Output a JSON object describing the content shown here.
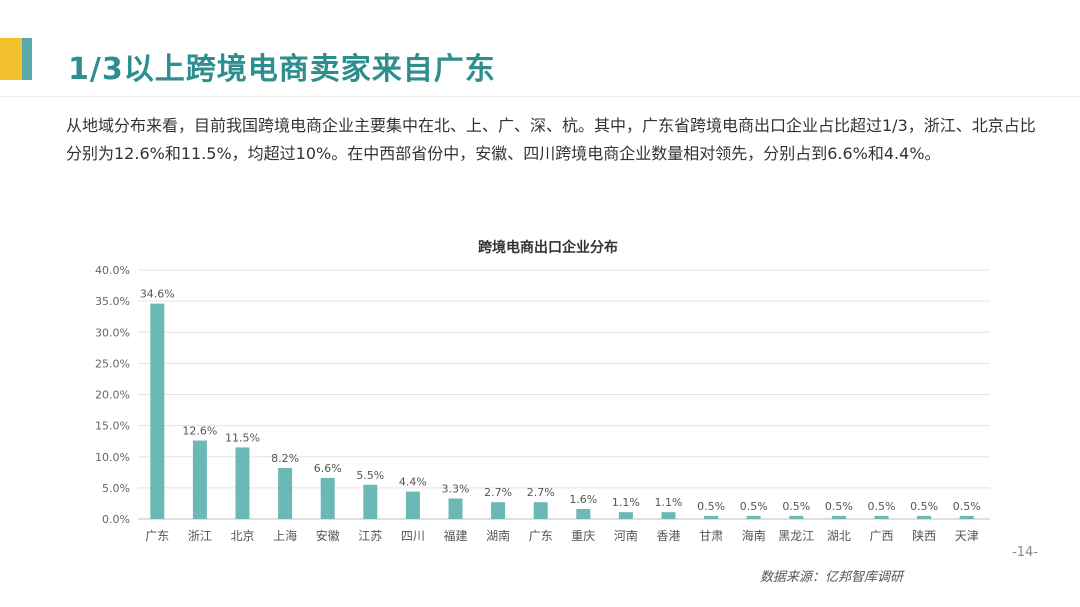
{
  "colors": {
    "bar": "#6cb8b5",
    "title": "#2c8e8e",
    "accent_yellow": "#f2c12e",
    "accent_teal": "#5aa8a8"
  },
  "page_title": "1/3以上跨境电商卖家来自广东",
  "paragraph": "从地域分布来看，目前我国跨境电商企业主要集中在北、上、广、深、杭。其中，广东省跨境电商出口企业占比超过1/3，浙江、北京占比分别为12.6%和11.5%，均超过10%。在中西部省份中，安徽、四川跨境电商企业数量相对领先，分别占到6.6%和4.4%。",
  "page_number": "-14-",
  "source": "数据来源：亿邦智库调研",
  "chart_data": {
    "type": "bar",
    "title": "跨境电商出口企业分布",
    "xlabel": "",
    "ylabel": "",
    "ylim": [
      0,
      40
    ],
    "yticks": [
      "0.0%",
      "5.0%",
      "10.0%",
      "15.0%",
      "20.0%",
      "25.0%",
      "30.0%",
      "35.0%",
      "40.0%"
    ],
    "grid": true,
    "categories": [
      "广东",
      "浙江",
      "北京",
      "上海",
      "安徽",
      "江苏",
      "四川",
      "福建",
      "湖南",
      "广东",
      "重庆",
      "河南",
      "香港",
      "甘肃",
      "海南",
      "黑龙江",
      "湖北",
      "广西",
      "陕西",
      "天津"
    ],
    "values": [
      34.6,
      12.6,
      11.5,
      8.2,
      6.6,
      5.5,
      4.4,
      3.3,
      2.7,
      2.7,
      1.6,
      1.1,
      1.1,
      0.5,
      0.5,
      0.5,
      0.5,
      0.5,
      0.5,
      0.5
    ],
    "labels": [
      "34.6%",
      "12.6%",
      "11.5%",
      "8.2%",
      "6.6%",
      "5.5%",
      "4.4%",
      "3.3%",
      "2.7%",
      "2.7%",
      "1.6%",
      "1.1%",
      "1.1%",
      "0.5%",
      "0.5%",
      "0.5%",
      "0.5%",
      "0.5%",
      "0.5%",
      "0.5%"
    ]
  }
}
